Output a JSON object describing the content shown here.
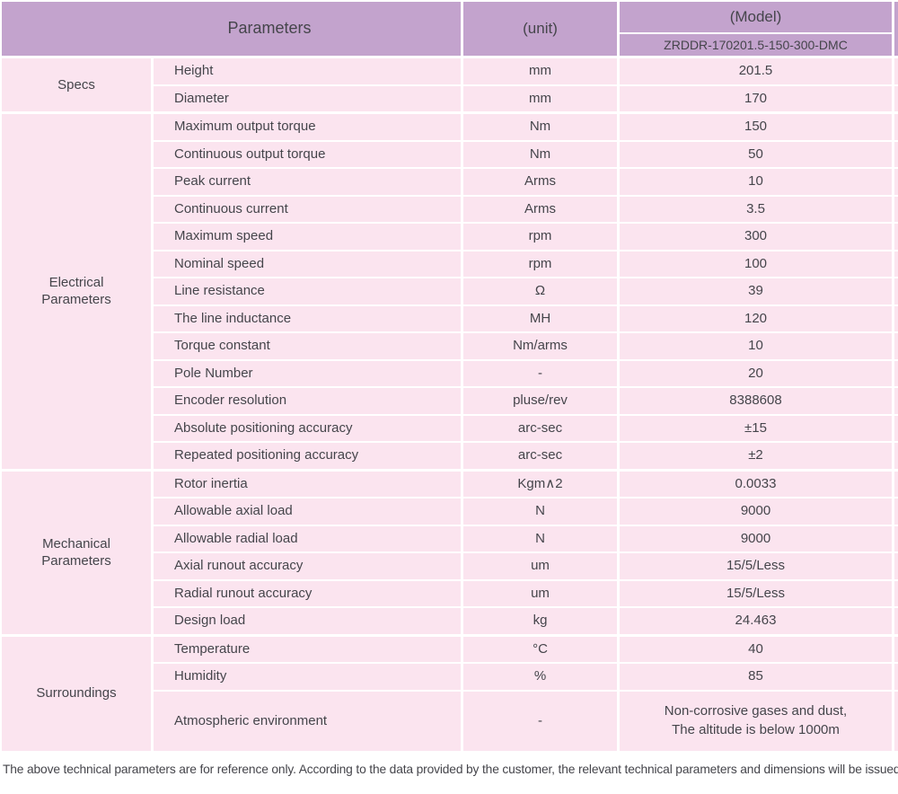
{
  "header": {
    "parameters": "Parameters",
    "unit": "(unit)",
    "model": "(Model)",
    "model_value": "ZRDDR-170201.5-150-300-DMC"
  },
  "sections": [
    {
      "group": [
        "Specs"
      ],
      "rows": [
        {
          "name": "Height",
          "unit": "mm",
          "value": "201.5"
        },
        {
          "name": "Diameter",
          "unit": "mm",
          "value": "170"
        }
      ]
    },
    {
      "group": [
        "Electrical",
        "Parameters"
      ],
      "rows": [
        {
          "name": "Maximum output torque",
          "unit": "Nm",
          "value": "150"
        },
        {
          "name": "Continuous output torque",
          "unit": "Nm",
          "value": "50"
        },
        {
          "name": "Peak current",
          "unit": "Arms",
          "value": "10"
        },
        {
          "name": "Continuous current",
          "unit": "Arms",
          "value": "3.5"
        },
        {
          "name": "Maximum speed",
          "unit": "rpm",
          "value": "300"
        },
        {
          "name": "Nominal speed",
          "unit": "rpm",
          "value": "100"
        },
        {
          "name": "Line resistance",
          "unit": "Ω",
          "value": "39"
        },
        {
          "name": "The line inductance",
          "unit": "MH",
          "value": "120"
        },
        {
          "name": "Torque constant",
          "unit": "Nm/arms",
          "value": "10"
        },
        {
          "name": "Pole Number",
          "unit": "-",
          "value": "20"
        },
        {
          "name": "Encoder resolution",
          "unit": "pluse/rev",
          "value": "8388608"
        },
        {
          "name": "Absolute positioning accuracy",
          "unit": "arc-sec",
          "value": "±15"
        },
        {
          "name": "Repeated positioning accuracy",
          "unit": "arc-sec",
          "value": "±2"
        }
      ]
    },
    {
      "group": [
        "Mechanical",
        "Parameters"
      ],
      "rows": [
        {
          "name": "Rotor inertia",
          "unit": "Kgm∧2",
          "value": "0.0033"
        },
        {
          "name": "Allowable axial load",
          "unit": "N",
          "value": "9000"
        },
        {
          "name": "Allowable radial load",
          "unit": "N",
          "value": "9000"
        },
        {
          "name": "Axial runout accuracy",
          "unit": "um",
          "value": "15/5/Less"
        },
        {
          "name": "Radial runout accuracy",
          "unit": "um",
          "value": "15/5/Less"
        },
        {
          "name": "Design load",
          "unit": "kg",
          "value": "24.463"
        }
      ]
    },
    {
      "group": [
        "Surroundings"
      ],
      "rows": [
        {
          "name": "Temperature",
          "unit": "°C",
          "value": "40"
        },
        {
          "name": "Humidity",
          "unit": "%",
          "value": "85"
        },
        {
          "name": "Atmospheric environment",
          "unit": "-",
          "value_lines": [
            "Non-corrosive gases and dust,",
            "The altitude is below 1000m"
          ]
        }
      ]
    }
  ],
  "footer_note": "The above technical parameters are for reference only. According to the data provided by the customer, the relevant technical parameters and dimensions will be issued.",
  "colors": {
    "header_bg": "#c3a3cd",
    "row_bg": "#fbe4ef",
    "text": "#45454b"
  }
}
